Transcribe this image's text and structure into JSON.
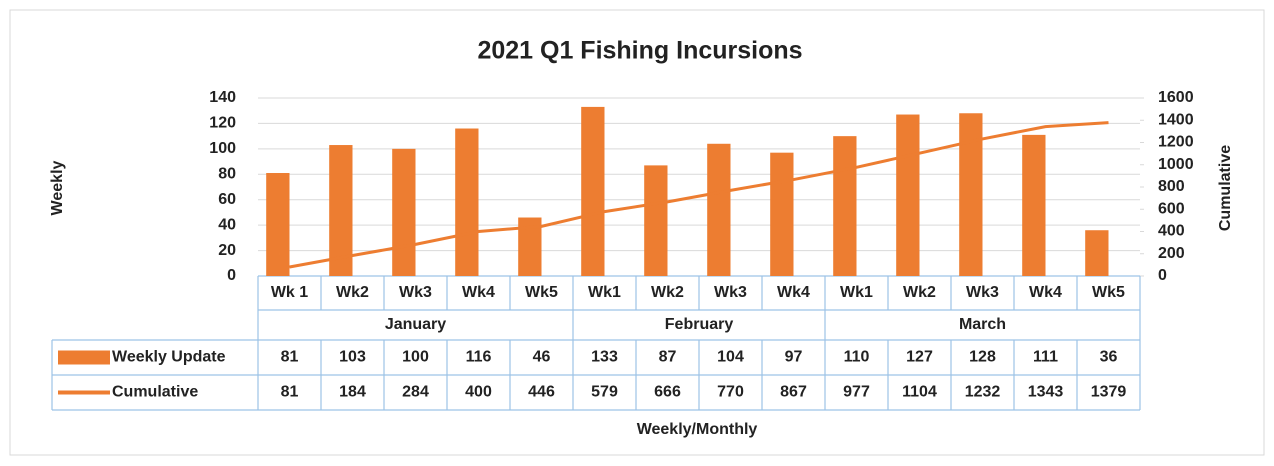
{
  "chart_data": {
    "type": "bar_line_table",
    "title": "2021 Q1 Fishing Incursions",
    "y_label": "Weekly",
    "y2_label": "Cumulative",
    "x_label": "Weekly/Monthly",
    "category_groups": [
      {
        "name": "January",
        "categories": [
          "Wk 1",
          "Wk2",
          "Wk3",
          "Wk4",
          "Wk5"
        ]
      },
      {
        "name": "February",
        "categories": [
          "Wk1",
          "Wk2",
          "Wk3",
          "Wk4"
        ]
      },
      {
        "name": "March",
        "categories": [
          "Wk1",
          "Wk2",
          "Wk3",
          "Wk4",
          "Wk5"
        ]
      }
    ],
    "series": [
      {
        "name": "Weekly Update",
        "type": "bar",
        "color": "#ed7d31",
        "axis": "y",
        "values": [
          81,
          103,
          100,
          116,
          46,
          133,
          87,
          104,
          97,
          110,
          127,
          128,
          111,
          36
        ]
      },
      {
        "name": "Cumulative",
        "type": "line",
        "color": "#ed7d31",
        "axis": "y2",
        "values": [
          81,
          184,
          284,
          400,
          446,
          579,
          666,
          770,
          867,
          977,
          1104,
          1232,
          1343,
          1379
        ]
      }
    ],
    "ylim": [
      0,
      140
    ],
    "yticks": [
      0,
      20,
      40,
      60,
      80,
      100,
      120,
      140
    ],
    "y2lim": [
      0,
      1600
    ],
    "y2ticks": [
      0,
      200,
      400,
      600,
      800,
      1000,
      1200,
      1400,
      1600
    ],
    "grid": true
  }
}
